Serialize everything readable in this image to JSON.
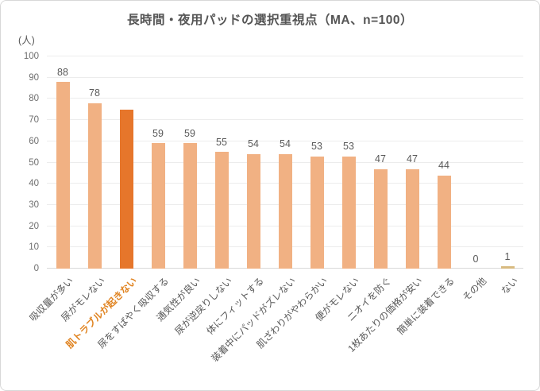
{
  "chart_data": {
    "type": "bar",
    "title": "長時間・夜用パッドの選択重視点（MA、n=100）",
    "unit_label": "(人)",
    "xlabel": "",
    "ylabel": "(人)",
    "ylim": [
      0,
      100
    ],
    "yticks": [
      0,
      10,
      20,
      30,
      40,
      50,
      60,
      70,
      80,
      90,
      100
    ],
    "grid": true,
    "legend": "none",
    "bars": [
      {
        "label": "吸収量が多い",
        "value": 88,
        "value_label": "88"
      },
      {
        "label": "尿がモレない",
        "value": 78,
        "value_label": "78"
      },
      {
        "label": "肌トラブルが起きない",
        "value": 75,
        "value_label": "",
        "highlight": true
      },
      {
        "label": "尿をすばやく吸収する",
        "value": 59,
        "value_label": "59"
      },
      {
        "label": "通気性が良い",
        "value": 59,
        "value_label": "59"
      },
      {
        "label": "尿が逆戻りしない",
        "value": 55,
        "value_label": "55"
      },
      {
        "label": "体にフィットする",
        "value": 54,
        "value_label": "54"
      },
      {
        "label": "装着中にパッドがズレない",
        "value": 54,
        "value_label": "54"
      },
      {
        "label": "肌ざわりがやわらかい",
        "value": 53,
        "value_label": "53"
      },
      {
        "label": "便がモレない",
        "value": 53,
        "value_label": "53"
      },
      {
        "label": "ニオイを防ぐ",
        "value": 47,
        "value_label": "47"
      },
      {
        "label": "1枚あたりの価格が安い",
        "value": 47,
        "value_label": "47"
      },
      {
        "label": "簡単に装着できる",
        "value": 44,
        "value_label": "44"
      },
      {
        "label": "その他",
        "value": 0,
        "value_label": "0"
      },
      {
        "label": "ない",
        "value": 1,
        "value_label": "1",
        "color": "#d8ba80"
      }
    ]
  },
  "colors": {
    "bar_default": "#f1b183",
    "bar_highlight": "#e6762b",
    "highlight_label_text": "#e08320",
    "label_text": "#595959",
    "tick_text": "#6e6e6e",
    "title_text": "#555555",
    "gridline": "#ececec",
    "axis_line": "#d9d9d9",
    "frame_border": "#d8d8d8",
    "background": "#ffffff"
  }
}
